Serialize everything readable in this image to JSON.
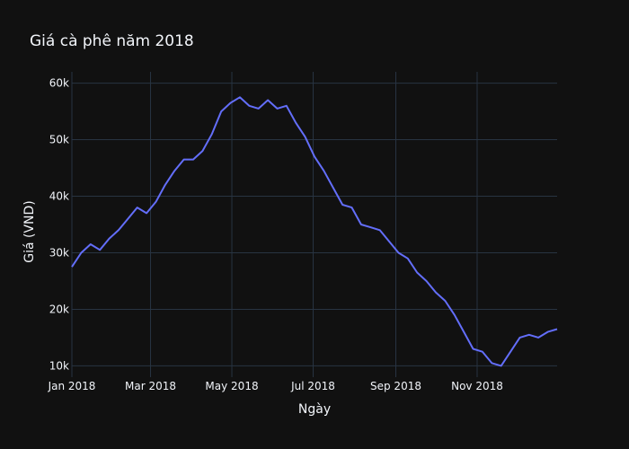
{
  "chart_data": {
    "type": "line",
    "title": "Giá cà phê năm 2018",
    "xlabel": "Ngày",
    "ylabel": "Giá (VND)",
    "x_tick_labels": [
      "Jan 2018",
      "Mar 2018",
      "May 2018",
      "Jul 2018",
      "Sep 2018",
      "Nov 2018"
    ],
    "x_tick_dates": [
      "2018-01-01",
      "2018-03-01",
      "2018-05-01",
      "2018-07-01",
      "2018-09-01",
      "2018-11-01"
    ],
    "y_ticks": [
      10000,
      20000,
      30000,
      40000,
      50000,
      60000
    ],
    "y_tick_labels": [
      "10k",
      "20k",
      "30k",
      "40k",
      "50k",
      "60k"
    ],
    "xlim": [
      "2018-01-01",
      "2018-12-31"
    ],
    "ylim": [
      8000,
      62000
    ],
    "grid": true,
    "line_color": "#636efa",
    "series": [
      {
        "x": [
          "2018-01-01",
          "2018-01-08",
          "2018-01-15",
          "2018-01-22",
          "2018-01-29",
          "2018-02-05",
          "2018-02-12",
          "2018-02-19",
          "2018-02-26",
          "2018-03-05",
          "2018-03-12",
          "2018-03-19",
          "2018-03-26",
          "2018-04-02",
          "2018-04-09",
          "2018-04-16",
          "2018-04-23",
          "2018-04-30",
          "2018-05-07",
          "2018-05-14",
          "2018-05-21",
          "2018-05-28",
          "2018-06-04",
          "2018-06-11",
          "2018-06-18",
          "2018-06-25",
          "2018-07-02",
          "2018-07-09",
          "2018-07-16",
          "2018-07-23",
          "2018-07-30",
          "2018-08-06",
          "2018-08-13",
          "2018-08-20",
          "2018-08-27",
          "2018-09-03",
          "2018-09-10",
          "2018-09-17",
          "2018-09-24",
          "2018-10-01",
          "2018-10-08",
          "2018-10-15",
          "2018-10-22",
          "2018-10-29",
          "2018-11-05",
          "2018-11-12",
          "2018-11-19",
          "2018-11-26",
          "2018-12-03",
          "2018-12-10",
          "2018-12-17",
          "2018-12-24",
          "2018-12-31"
        ],
        "y": [
          27500,
          30000,
          31500,
          30500,
          32500,
          34000,
          36000,
          38000,
          37000,
          39000,
          42000,
          44500,
          46500,
          46500,
          48000,
          51000,
          55000,
          56500,
          57500,
          56000,
          55500,
          57000,
          55500,
          56000,
          53000,
          50500,
          47000,
          44500,
          41500,
          38500,
          38000,
          35000,
          34500,
          34000,
          32000,
          30000,
          29000,
          26500,
          25000,
          23000,
          21500,
          19000,
          16000,
          13000,
          12500,
          10500,
          10000,
          12500,
          15000,
          15500,
          15000,
          16000,
          16500
        ]
      }
    ]
  }
}
